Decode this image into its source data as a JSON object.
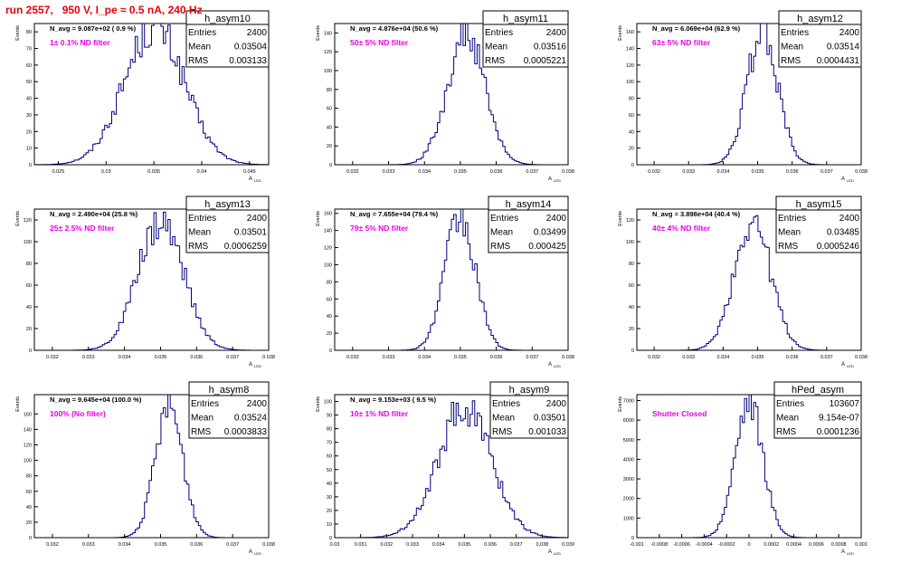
{
  "run_title": "run 2557,   950 V, I_pe ≈ 0.5 nA, 240 Hz",
  "colors": {
    "histogram": "#00007f",
    "filter_label": "#e600e6",
    "title": "#e8000b",
    "frame": "#000000"
  },
  "common": {
    "ylabel": "Events",
    "xlabel_main": "A",
    "xlabel_sub": "LED"
  },
  "chart_data": [
    {
      "type": "bar",
      "name": "h_asym10",
      "navg": "N_avg = 9.087e+02 ( 0.9 %)",
      "filter": "1± 0.1% ND filter",
      "stats": [
        [
          "Entries",
          "2400"
        ],
        [
          "Mean",
          "0.03504"
        ],
        [
          "RMS",
          "0.003133"
        ]
      ],
      "xlim": [
        0.0225,
        0.047
      ],
      "xticks": [
        0.025,
        0.03,
        0.035,
        0.04,
        0.045
      ],
      "xtick_labels": [
        "0.025",
        "0.03",
        "0.035",
        "0.04",
        "0.045"
      ],
      "ylim": [
        0,
        85
      ],
      "yticks": [
        0,
        10,
        20,
        30,
        40,
        50,
        60,
        70,
        80
      ],
      "mean": 0.03504,
      "rms": 0.003133,
      "peak": 83
    },
    {
      "type": "bar",
      "name": "h_asym11",
      "navg": "N_avg = 4.876e+04 (50.6 %)",
      "filter": "50± 5% ND filter",
      "stats": [
        [
          "Entries",
          "2400"
        ],
        [
          "Mean",
          "0.03516"
        ],
        [
          "RMS",
          "0.0005221"
        ]
      ],
      "xlim": [
        0.0315,
        0.038
      ],
      "xticks": [
        0.032,
        0.033,
        0.034,
        0.035,
        0.036,
        0.037,
        0.038
      ],
      "xtick_labels": [
        "0.032",
        "0.033",
        "0.034",
        "0.035",
        "0.036",
        "0.037",
        "0.038"
      ],
      "ylim": [
        0,
        150
      ],
      "yticks": [
        0,
        20,
        40,
        60,
        80,
        100,
        120,
        140
      ],
      "mean": 0.03516,
      "rms": 0.0005221,
      "peak": 138
    },
    {
      "type": "bar",
      "name": "h_asym12",
      "navg": "N_avg = 6.069e+04 (62.9 %)",
      "filter": "63± 5% ND filter",
      "stats": [
        [
          "Entries",
          "2400"
        ],
        [
          "Mean",
          "0.03514"
        ],
        [
          "RMS",
          "0.0004431"
        ]
      ],
      "xlim": [
        0.0315,
        0.038
      ],
      "xticks": [
        0.032,
        0.033,
        0.034,
        0.035,
        0.036,
        0.037,
        0.038
      ],
      "xtick_labels": [
        "0.032",
        "0.033",
        "0.034",
        "0.035",
        "0.036",
        "0.037",
        "0.038"
      ],
      "ylim": [
        0,
        170
      ],
      "yticks": [
        0,
        20,
        40,
        60,
        80,
        100,
        120,
        140,
        160
      ],
      "mean": 0.03514,
      "rms": 0.0004431,
      "peak": 162
    },
    {
      "type": "bar",
      "name": "h_asym13",
      "navg": "N_avg = 2.490e+04 (25.8 %)",
      "filter": "25± 2.5% ND filter",
      "stats": [
        [
          "Entries",
          "2400"
        ],
        [
          "Mean",
          "0.03501"
        ],
        [
          "RMS",
          "0.0006259"
        ]
      ],
      "xlim": [
        0.0315,
        0.038
      ],
      "xticks": [
        0.032,
        0.033,
        0.034,
        0.035,
        0.036,
        0.037,
        0.038
      ],
      "xtick_labels": [
        "0.032",
        "0.033",
        "0.034",
        "0.035",
        "0.036",
        "0.037",
        "0.038"
      ],
      "ylim": [
        0,
        130
      ],
      "yticks": [
        0,
        20,
        40,
        60,
        80,
        100,
        120
      ],
      "mean": 0.03501,
      "rms": 0.0006259,
      "peak": 120
    },
    {
      "type": "bar",
      "name": "h_asym14",
      "navg": "N_avg = 7.655e+04 (79.4 %)",
      "filter": "79± 5% ND filter",
      "stats": [
        [
          "Entries",
          "2400"
        ],
        [
          "Mean",
          "0.03499"
        ],
        [
          "RMS",
          "0.000425"
        ]
      ],
      "xlim": [
        0.0315,
        0.038
      ],
      "xticks": [
        0.032,
        0.033,
        0.034,
        0.035,
        0.036,
        0.037,
        0.038
      ],
      "xtick_labels": [
        "0.032",
        "0.033",
        "0.034",
        "0.035",
        "0.036",
        "0.037",
        "0.038"
      ],
      "ylim": [
        0,
        165
      ],
      "yticks": [
        0,
        20,
        40,
        60,
        80,
        100,
        120,
        140,
        160
      ],
      "mean": 0.03499,
      "rms": 0.000425,
      "peak": 156
    },
    {
      "type": "bar",
      "name": "h_asym15",
      "navg": "N_avg = 3.898e+04 (40.4 %)",
      "filter": "40± 4% ND filter",
      "stats": [
        [
          "Entries",
          "2400"
        ],
        [
          "Mean",
          "0.03485"
        ],
        [
          "RMS",
          "0.0005246"
        ]
      ],
      "xlim": [
        0.0315,
        0.038
      ],
      "xticks": [
        0.032,
        0.033,
        0.034,
        0.035,
        0.036,
        0.037,
        0.038
      ],
      "xtick_labels": [
        "0.032",
        "0.033",
        "0.034",
        "0.035",
        "0.036",
        "0.037",
        "0.038"
      ],
      "ylim": [
        0,
        130
      ],
      "yticks": [
        0,
        20,
        40,
        60,
        80,
        100,
        120
      ],
      "mean": 0.03485,
      "rms": 0.0005246,
      "peak": 120
    },
    {
      "type": "bar",
      "name": "h_asym8",
      "navg": "N_avg = 9.645e+04 (100.0 %)",
      "filter": "100% (No filter)",
      "stats": [
        [
          "Entries",
          "2400"
        ],
        [
          "Mean",
          "0.03524"
        ],
        [
          "RMS",
          "0.0003833"
        ]
      ],
      "xlim": [
        0.0315,
        0.038
      ],
      "xticks": [
        0.032,
        0.033,
        0.034,
        0.035,
        0.036,
        0.037,
        0.038
      ],
      "xtick_labels": [
        "0.032",
        "0.033",
        "0.034",
        "0.035",
        "0.036",
        "0.037",
        "0.038"
      ],
      "ylim": [
        0,
        185
      ],
      "yticks": [
        0,
        20,
        40,
        60,
        80,
        100,
        120,
        140,
        160
      ],
      "mean": 0.03524,
      "rms": 0.0003833,
      "peak": 170
    },
    {
      "type": "bar",
      "name": "h_asym9",
      "navg": "N_avg = 9.153e+03 ( 9.5 %)",
      "filter": "10± 1% ND filter",
      "stats": [
        [
          "Entries",
          "2400"
        ],
        [
          "Mean",
          "0.03501"
        ],
        [
          "RMS",
          "0.001033"
        ]
      ],
      "xlim": [
        0.03,
        0.039
      ],
      "xticks": [
        0.03,
        0.031,
        0.032,
        0.033,
        0.034,
        0.035,
        0.036,
        0.037,
        0.038,
        0.039
      ],
      "xtick_labels": [
        "0.03",
        "0.031",
        "0.032",
        "0.033",
        "0.034",
        "0.035",
        "0.036",
        "0.037",
        "0.038",
        "0.039"
      ],
      "ylim": [
        0,
        105
      ],
      "yticks": [
        0,
        10,
        20,
        30,
        40,
        50,
        60,
        70,
        80,
        90,
        100
      ],
      "mean": 0.03501,
      "rms": 0.001033,
      "peak": 96
    },
    {
      "type": "bar",
      "name": "hPed_asym",
      "navg": "",
      "filter": "Shutter Closed",
      "stats": [
        [
          "Entries",
          "103607"
        ],
        [
          "Mean",
          "9.154e-07"
        ],
        [
          "RMS",
          "0.0001236"
        ]
      ],
      "xlim": [
        -0.001,
        0.001
      ],
      "xticks": [
        -0.001,
        -0.0008,
        -0.0006,
        -0.0004,
        -0.0002,
        0,
        0.0002,
        0.0004,
        0.0006,
        0.0008,
        0.001
      ],
      "xtick_labels": [
        "-0.001",
        "-0.0008",
        "-0.0006",
        "-0.0004",
        "-0.0002",
        "0",
        "0.0002",
        "0.0004",
        "0.0006",
        "0.0008",
        "0.001"
      ],
      "ylim": [
        0,
        7300
      ],
      "yticks": [
        0,
        1000,
        2000,
        3000,
        4000,
        5000,
        6000,
        7000
      ],
      "mean": 9.154e-07,
      "rms": 0.0001236,
      "peak": 6800
    }
  ]
}
